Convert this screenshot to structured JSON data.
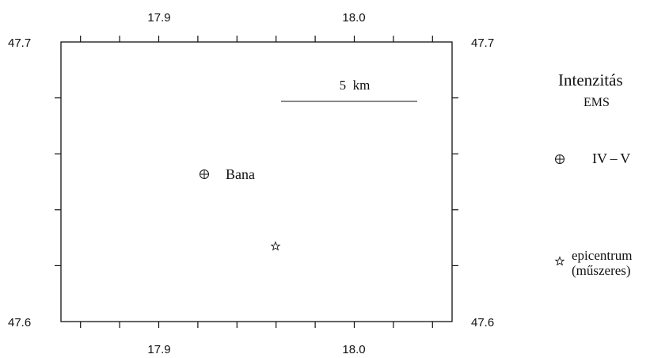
{
  "map": {
    "lon_range": [
      17.85,
      18.05
    ],
    "lat_range": [
      47.6,
      47.7
    ],
    "lon_ticks": [
      17.9,
      18.0
    ],
    "lat_ticks": [
      47.6,
      47.7
    ],
    "lon_tick_labels": [
      "17.9",
      "18.0"
    ],
    "lat_tick_labels": [
      "47.6",
      "47.7"
    ],
    "lon_minor_step": 0.02,
    "lat_minor_step": 0.02,
    "grid": false,
    "scale_bar": {
      "label": "5  km",
      "length_km": 5
    },
    "features": [
      {
        "id": "bana",
        "type": "intensity",
        "label": "Bana",
        "lon": 17.922,
        "lat": 47.6525
      },
      {
        "id": "epicentre",
        "type": "epicentre",
        "label": "",
        "lon": 17.958,
        "lat": 47.6265
      }
    ]
  },
  "legend": {
    "title": "Intenzitás",
    "subtitle": "EMS",
    "intensity_label": "IV – V",
    "epicentre_label_line1": "epicentrum",
    "epicentre_label_line2": "(műszeres)"
  },
  "colors": {
    "ink": "#111111",
    "background": "#ffffff"
  }
}
